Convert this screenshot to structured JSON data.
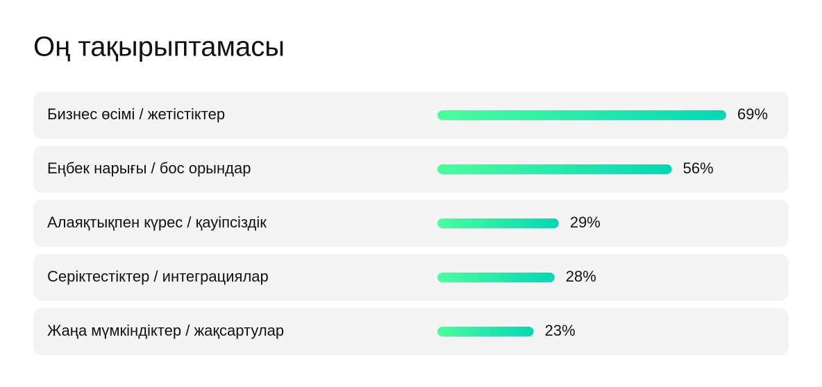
{
  "chart_data": {
    "type": "bar",
    "orientation": "horizontal",
    "title": "Оң тақырыптамасы",
    "categories": [
      "Бизнес өсімі / жетістіктер",
      "Еңбек нарығы / бос орындар",
      "Алаяқтықпен күрес / қауіпсіздік",
      "Серіктестіктер / интеграциялар",
      "Жаңа мүмкіндіктер / жақсартулар"
    ],
    "values": [
      69,
      56,
      29,
      28,
      23
    ],
    "value_labels": [
      "69%",
      "56%",
      "29%",
      "28%",
      "23%"
    ],
    "colors": [
      "#4dfc9c",
      "#06d6b6"
    ]
  }
}
